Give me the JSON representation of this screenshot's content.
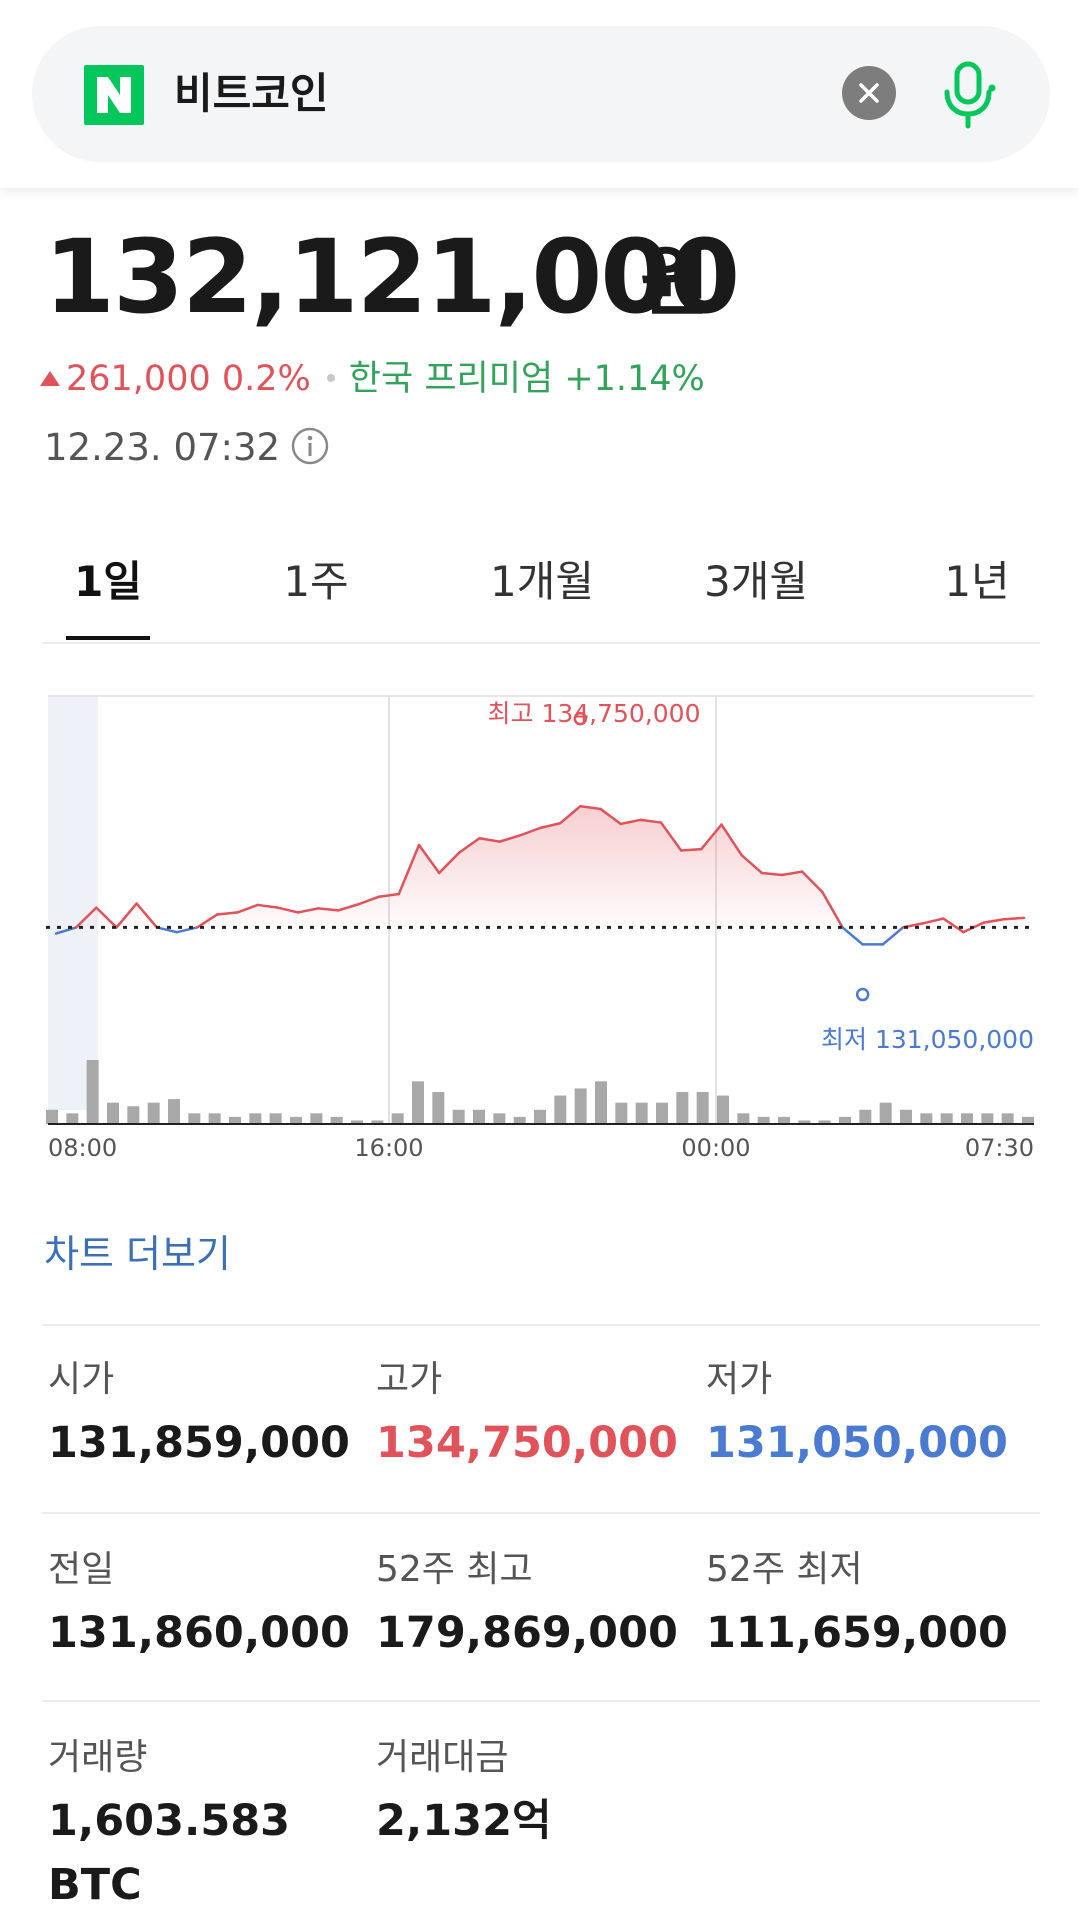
{
  "search": {
    "query": "비트코인",
    "logo_letter": "N"
  },
  "quote": {
    "price": "132,121,000",
    "unit": "원",
    "change_amount": "261,000",
    "change_percent": "0.2%",
    "premium_label": "한국 프리미엄",
    "premium_value": "+1.14%",
    "timestamp": "12.23. 07:32"
  },
  "tabs": [
    {
      "label": "1일",
      "active": true
    },
    {
      "label": "1주",
      "active": false
    },
    {
      "label": "1개월",
      "active": false
    },
    {
      "label": "3개월",
      "active": false
    },
    {
      "label": "1년",
      "active": false
    }
  ],
  "chart_data": {
    "type": "line",
    "x_ticks": [
      "08:00",
      "16:00",
      "00:00",
      "07:30"
    ],
    "baseline_prev_close": 131860000,
    "high_label": "최고 134,750,000",
    "low_label": "최저 131,050,000",
    "high_value": 134750000,
    "low_value": 131050000,
    "ylim": [
      130500000,
      135200000
    ],
    "price_series": [
      131770000,
      131860000,
      132150000,
      131860000,
      132210000,
      131860000,
      131790000,
      131860000,
      132050000,
      132080000,
      132190000,
      132150000,
      132080000,
      132140000,
      132110000,
      132200000,
      132310000,
      132350000,
      133070000,
      132660000,
      132960000,
      133170000,
      133120000,
      133210000,
      133320000,
      133390000,
      133640000,
      133600000,
      133380000,
      133440000,
      133400000,
      132990000,
      133010000,
      133370000,
      132920000,
      132660000,
      132630000,
      132680000,
      132380000,
      131860000,
      131610000,
      131610000,
      131860000,
      131920000,
      131990000,
      131790000,
      131930000,
      131980000,
      132000000
    ],
    "volume_series": [
      4,
      3,
      18,
      6,
      5,
      6,
      7,
      3,
      3,
      2,
      3,
      3,
      2,
      3,
      2,
      1,
      1,
      3,
      12,
      9,
      4,
      4,
      3,
      2,
      4,
      8,
      10,
      12,
      6,
      6,
      6,
      9,
      9,
      8,
      3,
      2,
      2,
      1,
      1,
      2,
      4,
      6,
      4,
      3,
      3,
      3,
      3,
      3,
      2
    ]
  },
  "chart_more_label": "차트 더보기",
  "stats": [
    {
      "label": "시가",
      "value": "131,859,000",
      "tone": "default"
    },
    {
      "label": "고가",
      "value": "134,750,000",
      "tone": "red"
    },
    {
      "label": "저가",
      "value": "131,050,000",
      "tone": "blue"
    },
    {
      "label": "전일",
      "value": "131,860,000",
      "tone": "default"
    },
    {
      "label": "52주 최고",
      "value": "179,869,000",
      "tone": "default"
    },
    {
      "label": "52주 최저",
      "value": "111,659,000",
      "tone": "default"
    },
    {
      "label": "거래량",
      "value": "1,603.583",
      "value2": "BTC",
      "tone": "default"
    },
    {
      "label": "거래대금",
      "value": "2,132억",
      "tone": "default"
    }
  ],
  "colors": {
    "up": "#e0535a",
    "down": "#4a7bd0",
    "brand": "#03c75a",
    "link": "#3b6fb6"
  }
}
